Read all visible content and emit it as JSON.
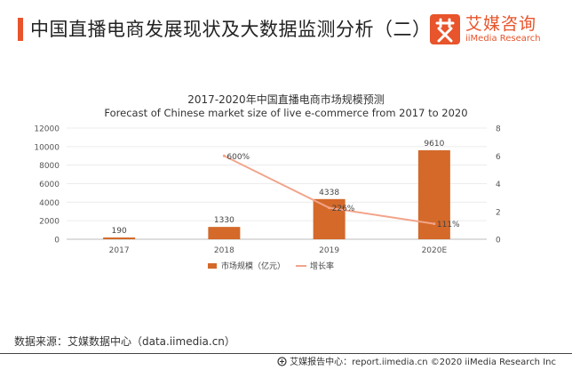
{
  "header": {
    "title": "中国直播电商发展现状及大数据监测分析（二）",
    "brand_cn": "艾媒咨询",
    "brand_en": "iiMedia Research",
    "accent_color": "#e8542b"
  },
  "chart_data": {
    "type": "bar+line",
    "title": "2017-2020年中国直播电商市场规模预测",
    "subtitle": "Forecast of Chinese market size of live e-commerce from 2017 to 2020",
    "categories": [
      "2017",
      "2018",
      "2019",
      "2020E"
    ],
    "series": [
      {
        "name": "市场规模（亿元）",
        "type": "bar",
        "axis": "left",
        "values": [
          190,
          1330,
          4338,
          9610
        ],
        "labels": [
          "190",
          "1330",
          "4338",
          "9610"
        ],
        "color": "#d4692a"
      },
      {
        "name": "增长率",
        "type": "line",
        "axis": "right",
        "x": [
          "2018",
          "2019",
          "2020E"
        ],
        "values": [
          6.0,
          2.26,
          1.11
        ],
        "labels": [
          "600%",
          "226%",
          "111%"
        ],
        "color": "#f2a48a"
      }
    ],
    "y_left": {
      "min": 0,
      "max": 12000,
      "ticks": [
        "0",
        "2000",
        "4000",
        "6000",
        "8000",
        "10000",
        "12000"
      ]
    },
    "y_right": {
      "min": 0,
      "max": 8,
      "ticks": [
        "0",
        "2",
        "4",
        "6",
        "8"
      ]
    },
    "grid": true,
    "legend_position": "bottom"
  },
  "source": "数据来源：艾媒数据中心（data.iimedia.cn）",
  "footer": "艾媒报告中心：report.iimedia.cn  ©2020  iiMedia Research Inc"
}
